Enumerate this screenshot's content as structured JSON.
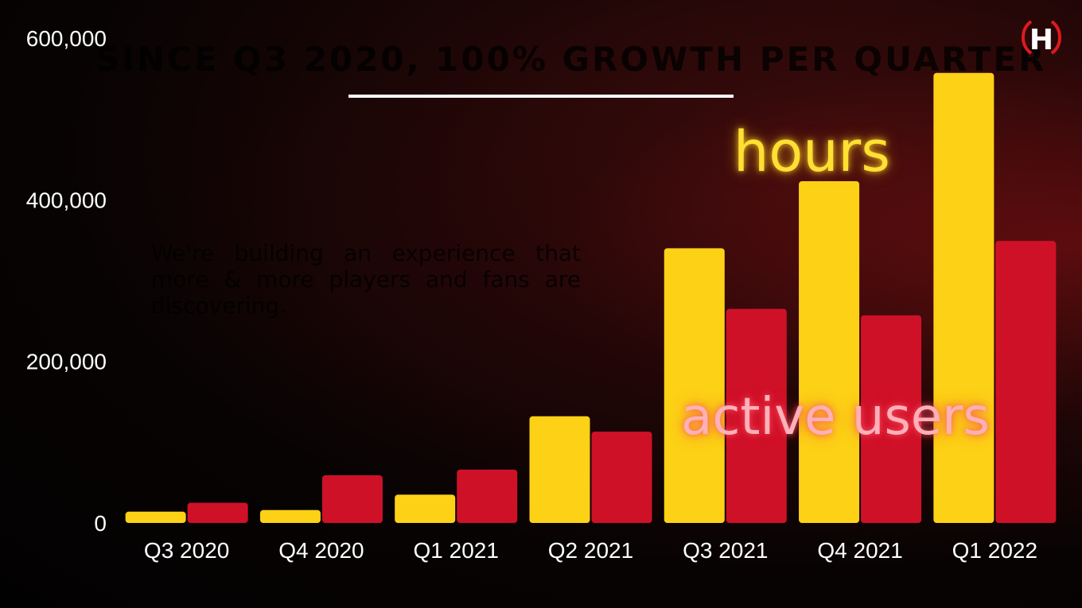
{
  "slide": {
    "title": "SINCE Q3 2020, 100% GROWTH PER QUARTER",
    "body": "We're building an experience that more & more players and fans are discovering."
  },
  "logo": {
    "icon": "h-shield-logo",
    "letter": "H",
    "color": "#e0191f"
  },
  "chart_data": {
    "type": "bar",
    "categories": [
      "Q3 2020",
      "Q4 2020",
      "Q1 2021",
      "Q2 2021",
      "Q3 2021",
      "Q4 2021",
      "Q1 2022"
    ],
    "series": [
      {
        "name": "hours",
        "color": "#fcd116",
        "values": [
          14000,
          16000,
          35000,
          132000,
          340000,
          423000,
          557000
        ]
      },
      {
        "name": "active users",
        "color": "#cf1128",
        "values": [
          25000,
          59000,
          66000,
          113000,
          265000,
          257000,
          349000
        ]
      }
    ],
    "ylim": [
      0,
      600000
    ],
    "yticks": [
      0,
      200000,
      400000,
      600000
    ],
    "ytick_labels": [
      "0",
      "200,000",
      "400,000",
      "600,000"
    ],
    "grid": false,
    "legend": "inline labels"
  }
}
